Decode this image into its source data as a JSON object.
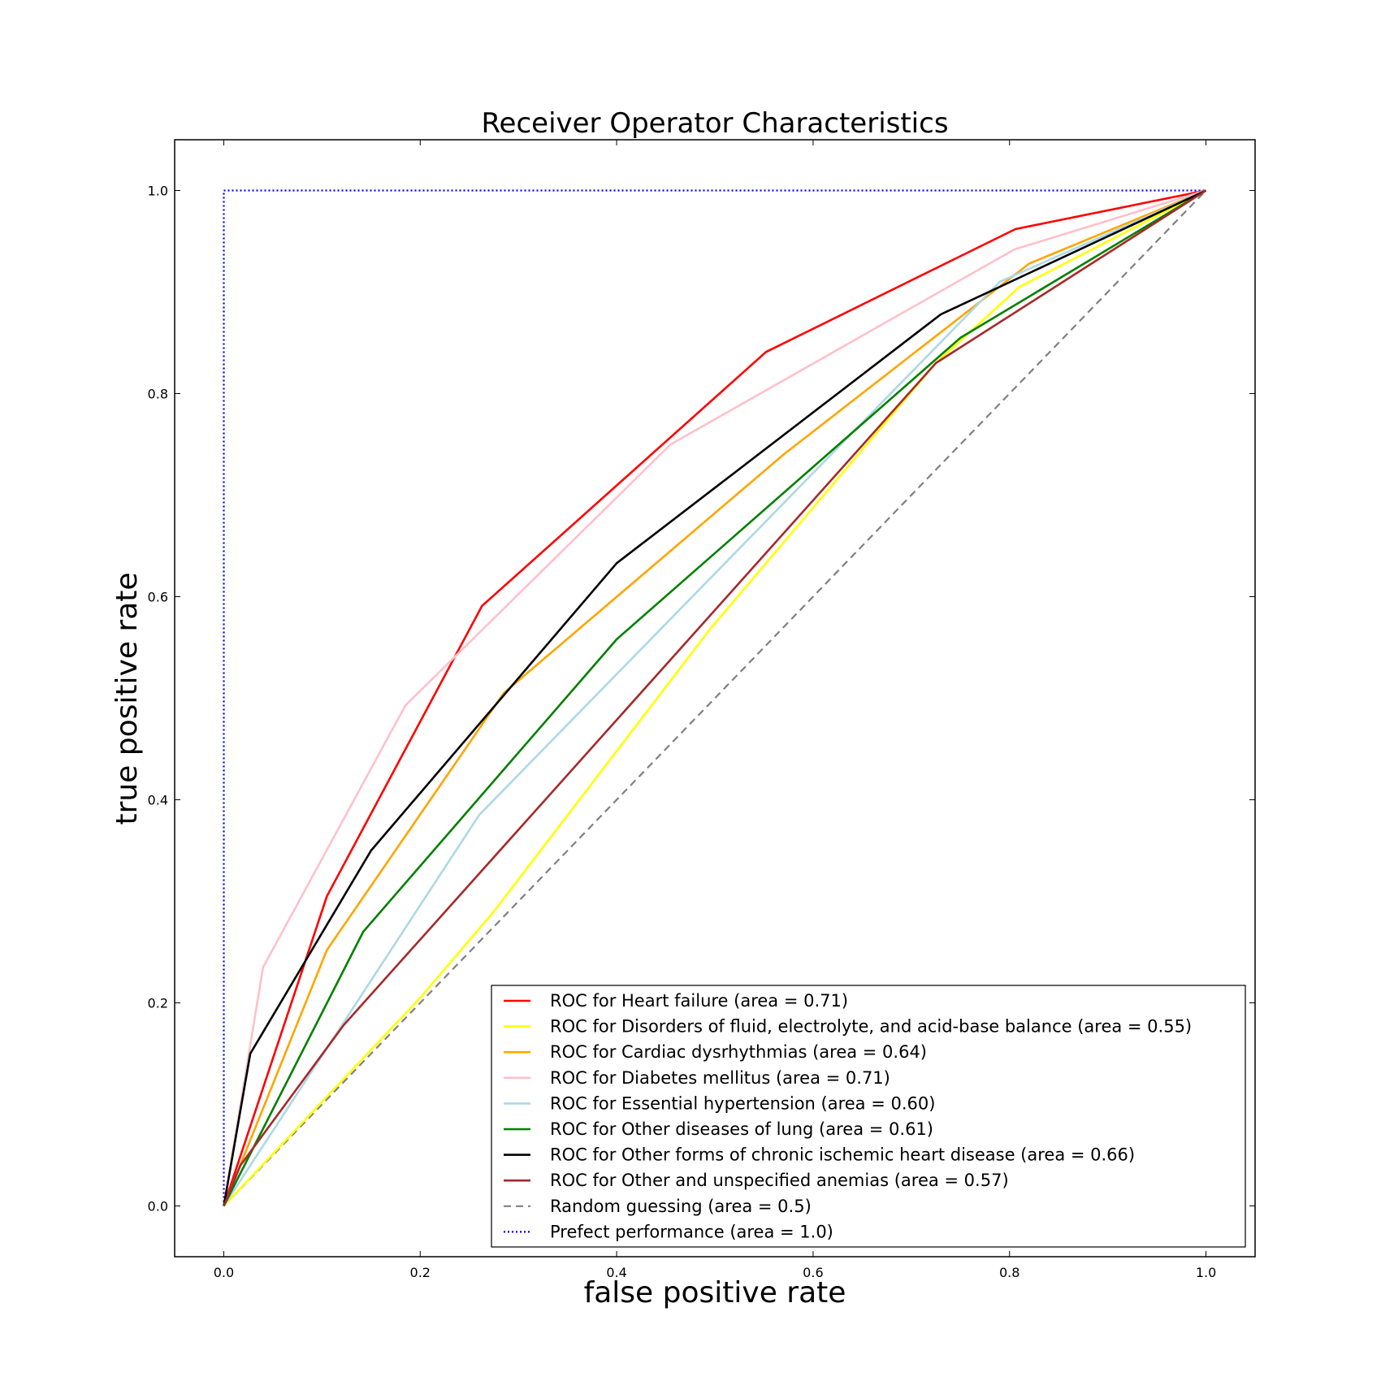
{
  "chart_data": {
    "type": "line",
    "title": "Receiver Operator Characteristics",
    "xlabel": "false positive rate",
    "ylabel": "true positive rate",
    "xlim": [
      -0.05,
      1.05
    ],
    "ylim": [
      -0.05,
      1.05
    ],
    "x_ticks": [
      "0.0",
      "0.2",
      "0.4",
      "0.6",
      "0.8",
      "1.0"
    ],
    "y_ticks": [
      "0.0",
      "0.2",
      "0.4",
      "0.6",
      "0.8",
      "1.0"
    ],
    "grid": false,
    "legend_position": "lower-right",
    "series": [
      {
        "name": "ROC for Heart failure (area = 0.71)",
        "color": "#ff0000",
        "style": "solid",
        "points": [
          [
            0,
            0
          ],
          [
            0.105,
            0.305
          ],
          [
            0.263,
            0.591
          ],
          [
            0.552,
            0.841
          ],
          [
            0.806,
            0.962
          ],
          [
            1,
            1
          ]
        ]
      },
      {
        "name": "ROC for Disorders of fluid, electrolyte, and acid-base balance (area = 0.55)",
        "color": "#ffff00",
        "style": "solid",
        "points": [
          [
            0,
            0
          ],
          [
            0.2,
            0.205
          ],
          [
            0.275,
            0.29
          ],
          [
            0.495,
            0.568
          ],
          [
            0.725,
            0.83
          ],
          [
            0.81,
            0.905
          ],
          [
            1,
            1
          ]
        ]
      },
      {
        "name": "ROC for Cardiac dysrhythmias (area = 0.64)",
        "color": "#ffa500",
        "style": "solid",
        "points": [
          [
            0,
            0
          ],
          [
            0.105,
            0.252
          ],
          [
            0.285,
            0.505
          ],
          [
            0.57,
            0.74
          ],
          [
            0.82,
            0.928
          ],
          [
            1,
            1
          ]
        ]
      },
      {
        "name": "ROC for Diabetes mellitus (area = 0.71)",
        "color": "#ffc0cb",
        "style": "solid",
        "points": [
          [
            0,
            0
          ],
          [
            0.04,
            0.235
          ],
          [
            0.185,
            0.493
          ],
          [
            0.455,
            0.75
          ],
          [
            0.805,
            0.942
          ],
          [
            1,
            1
          ]
        ]
      },
      {
        "name": "ROC for Essential hypertension (area = 0.60)",
        "color": "#add8e6",
        "style": "solid",
        "points": [
          [
            0,
            0
          ],
          [
            0.26,
            0.385
          ],
          [
            0.79,
            0.91
          ],
          [
            1,
            1
          ]
        ]
      },
      {
        "name": "ROC for Other diseases of lung (area = 0.61)",
        "color": "#008000",
        "style": "solid",
        "points": [
          [
            0,
            0
          ],
          [
            0.142,
            0.27
          ],
          [
            0.4,
            0.558
          ],
          [
            0.75,
            0.855
          ],
          [
            1,
            1
          ]
        ]
      },
      {
        "name": "ROC for Other forms of chronic ischemic heart disease (area = 0.66)",
        "color": "#000000",
        "style": "solid",
        "points": [
          [
            0,
            0
          ],
          [
            0.027,
            0.15
          ],
          [
            0.15,
            0.35
          ],
          [
            0.4,
            0.633
          ],
          [
            0.73,
            0.878
          ],
          [
            1,
            1
          ]
        ]
      },
      {
        "name": "ROC for Other and unspecified anemias (area = 0.57)",
        "color": "#a52a2a",
        "style": "solid",
        "points": [
          [
            0,
            0
          ],
          [
            0.017,
            0.04
          ],
          [
            0.122,
            0.178
          ],
          [
            0.725,
            0.83
          ],
          [
            1,
            1
          ]
        ]
      },
      {
        "name": "Random guessing (area = 0.5)",
        "color": "#808080",
        "style": "dashed",
        "points": [
          [
            0,
            0
          ],
          [
            1,
            1
          ]
        ]
      },
      {
        "name": "Prefect performance (area = 1.0)",
        "color": "#0000ff",
        "style": "dotted",
        "points": [
          [
            0,
            0
          ],
          [
            0,
            1
          ],
          [
            1,
            1
          ]
        ]
      }
    ]
  }
}
